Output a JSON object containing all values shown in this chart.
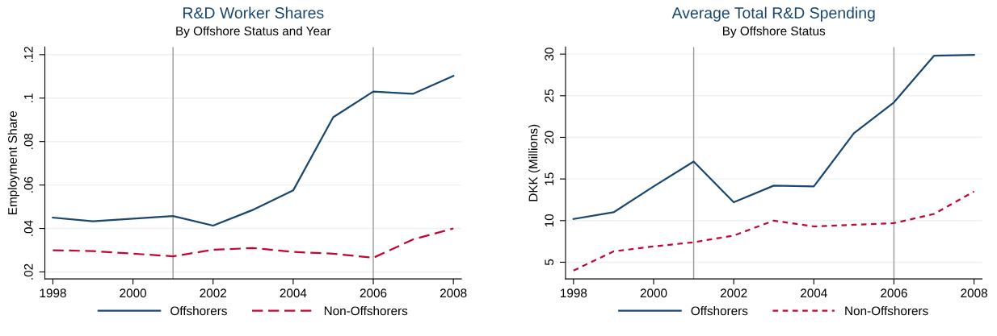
{
  "chart_data": [
    {
      "type": "line",
      "title": "R&D Worker Shares",
      "subtitle": "By Offshore Status and Year",
      "ylabel": "Employment Share",
      "x": [
        1998,
        1999,
        2000,
        2001,
        2002,
        2003,
        2004,
        2005,
        2006,
        2007,
        2008
      ],
      "series": [
        {
          "name": "Offshorers",
          "color": "#1a476f",
          "line_style": "solid",
          "values": [
            0.045,
            0.0433,
            0.0445,
            0.0457,
            0.0413,
            0.0486,
            0.0575,
            0.0912,
            0.103,
            0.102,
            0.1102
          ]
        },
        {
          "name": "Non-Offshorers",
          "color": "#c10534",
          "line_style": "dashed",
          "values": [
            0.03,
            0.0296,
            0.0284,
            0.0272,
            0.0302,
            0.031,
            0.0292,
            0.0284,
            0.0265,
            0.035,
            0.04
          ]
        }
      ],
      "xlim": [
        1997.8,
        2008.2
      ],
      "xticks": [
        1998,
        2000,
        2002,
        2004,
        2006,
        2008
      ],
      "ylim": [
        0.0168,
        0.1235
      ],
      "yticks": [
        {
          "value": 0.02,
          "label": ".02"
        },
        {
          "value": 0.04,
          "label": ".04"
        },
        {
          "value": 0.06,
          "label": ".06"
        },
        {
          "value": 0.08,
          "label": ".08"
        },
        {
          "value": 0.1,
          "label": ".1"
        },
        {
          "value": 0.12,
          "label": ".12"
        }
      ],
      "ref_lines": [
        {
          "axis": "x",
          "value": 2001,
          "color": "#999999"
        },
        {
          "axis": "x",
          "value": 2006,
          "color": "#999999"
        }
      ],
      "grid": "y",
      "legend": "bottom",
      "marker": "none"
    },
    {
      "type": "line",
      "title": "Average Total R&D Spending",
      "subtitle": "By Offshore Status",
      "ylabel": "DKK (Millions)",
      "x": [
        1998,
        1999,
        2000,
        2001,
        2002,
        2003,
        2004,
        2005,
        2006,
        2007,
        2008
      ],
      "series": [
        {
          "name": "Offshorers",
          "color": "#1a476f",
          "line_style": "solid",
          "values": [
            10.2,
            11.0,
            14.1,
            17.1,
            12.2,
            14.2,
            14.1,
            20.5,
            24.2,
            29.8,
            29.9
          ]
        },
        {
          "name": "Non-Offshorers",
          "color": "#c10534",
          "line_style": "dotted",
          "values": [
            4.0,
            6.3,
            6.9,
            7.4,
            8.2,
            10.0,
            9.3,
            9.5,
            9.7,
            10.8,
            13.5
          ]
        }
      ],
      "xlim": [
        1997.8,
        2008.2
      ],
      "xticks": [
        1998,
        2000,
        2002,
        2004,
        2006,
        2008
      ],
      "ylim": [
        3.0,
        30.85
      ],
      "yticks": [
        5,
        10,
        15,
        20,
        25,
        30
      ],
      "ref_lines": [
        {
          "axis": "x",
          "value": 2001,
          "color": "#999999"
        },
        {
          "axis": "x",
          "value": 2006,
          "color": "#999999"
        }
      ],
      "grid": "y",
      "legend": "bottom",
      "marker": "none"
    }
  ]
}
